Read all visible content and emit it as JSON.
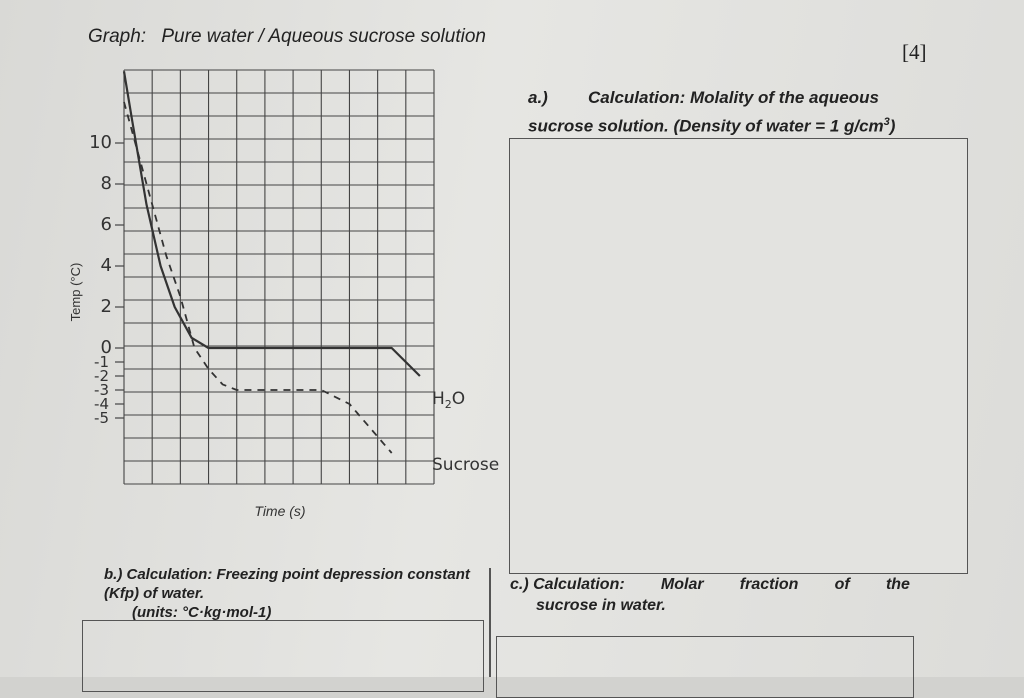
{
  "header": {
    "graph_label": "Graph:",
    "graph_title": "Pure water / Aqueous sucrose solution",
    "marks": "[4]"
  },
  "question_a": {
    "number": "a.)",
    "title": "Calculation: Molality of the aqueous",
    "line2": "sucrose solution. (Density of water = 1 g/cm",
    "sup": "3",
    "close": ")"
  },
  "question_b": {
    "line1": "b.) Calculation: Freezing point depression constant",
    "line2": "(Kfp) of water.",
    "units": "(units: °C·kg·mol-1)"
  },
  "question_c": {
    "label": "c.) Calculation:",
    "words": [
      "Molar",
      "fraction",
      "of",
      "the"
    ],
    "line2": "sucrose in water."
  },
  "colors": {
    "ink": "#2a2a2a",
    "grid": "#444444",
    "water_line": "#333333",
    "sucrose_line": "#333333"
  },
  "chart_data": {
    "type": "line",
    "xlabel": "Time (s)",
    "ylabel": "Temp (°C)",
    "y_ticks": [
      "10",
      "8",
      "6",
      "4",
      "2",
      "0",
      "-1",
      "-2",
      "-3",
      "-4",
      "-5"
    ],
    "ylim": [
      -5,
      10
    ],
    "grid": true,
    "series": [
      {
        "name": "H2O",
        "style": "solid",
        "x": [
          0,
          0.3,
          0.8,
          1.3,
          1.8,
          2.4,
          3,
          5,
          7,
          9.5,
          10.5
        ],
        "y": [
          13.5,
          11,
          7,
          4,
          2,
          0.5,
          0,
          0,
          0,
          0,
          -2
        ]
      },
      {
        "name": "Sucrose",
        "style": "dashed",
        "x": [
          0,
          0.5,
          1,
          1.5,
          2,
          2.5,
          3,
          3.5,
          4,
          5,
          6,
          7,
          8,
          9.5
        ],
        "y": [
          12,
          9.5,
          7,
          4.5,
          2.5,
          0,
          -1.5,
          -2.6,
          -3,
          -3,
          -3,
          -3,
          -4,
          -7.5
        ]
      }
    ]
  }
}
